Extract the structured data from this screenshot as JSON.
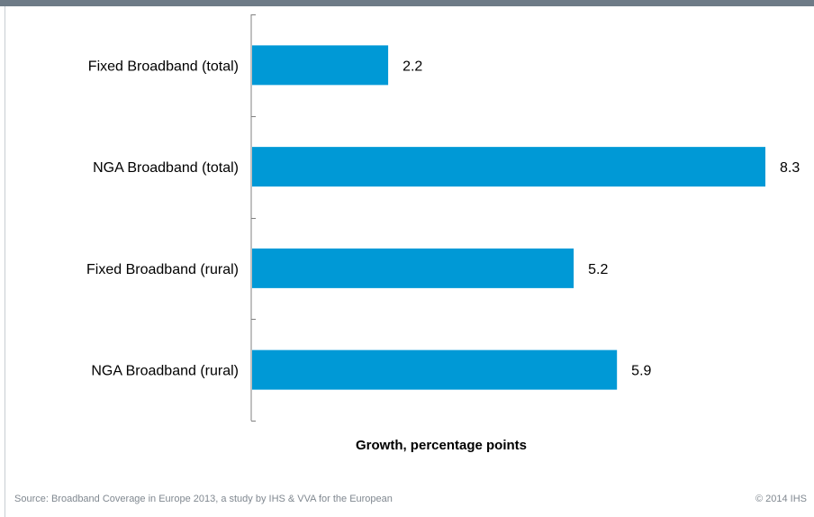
{
  "chart_data": {
    "type": "bar",
    "orientation": "horizontal",
    "categories": [
      "Fixed Broadband (total)",
      "NGA Broadband (total)",
      "Fixed Broadband (rural)",
      "NGA Broadband (rural)"
    ],
    "values": [
      2.2,
      8.3,
      5.2,
      5.9
    ],
    "data_labels": [
      "2.2",
      "8.3",
      "5.2",
      "5.9"
    ],
    "xlabel": "Growth, percentage points",
    "xlim": [
      0,
      8.3
    ],
    "grid": false,
    "legend": "none",
    "bar_color": "#0099d6"
  },
  "footer": {
    "source": "Source: Broadband Coverage in Europe 2013, a study by IHS & VVA for the European",
    "copyright": "© 2014 IHS"
  },
  "colors": {
    "header_band": "#6e7b87",
    "axis": "#808080"
  }
}
